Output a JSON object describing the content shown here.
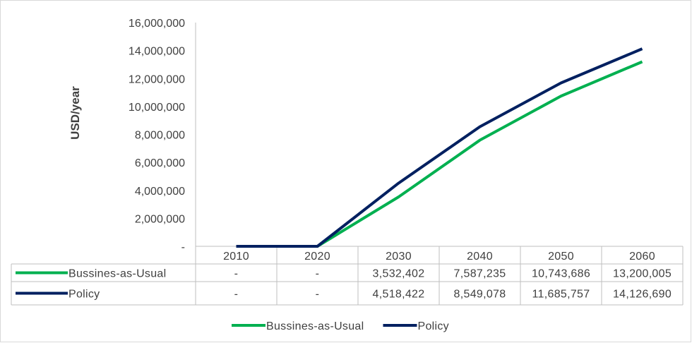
{
  "chart_data": {
    "type": "line",
    "title": "",
    "ylabel": "USD/year",
    "xlabel": "",
    "x": [
      "2010",
      "2020",
      "2030",
      "2040",
      "2050",
      "2060"
    ],
    "ylim": [
      0,
      16000000
    ],
    "yticks": [
      0,
      2000000,
      4000000,
      6000000,
      8000000,
      10000000,
      12000000,
      14000000,
      16000000
    ],
    "ytick_labels": [
      "-",
      "2,000,000",
      "4,000,000",
      "6,000,000",
      "8,000,000",
      "10,000,000",
      "12,000,000",
      "14,000,000",
      "16,000,000"
    ],
    "grid": false,
    "legend_position": "bottom",
    "series": [
      {
        "name": "Bussines-as-Usual",
        "color": "#00b050",
        "values": [
          0,
          0,
          3532402,
          7587235,
          10743686,
          13200005
        ],
        "labels": [
          "-",
          "-",
          "3,532,402",
          "7,587,235",
          "10,743,686",
          "13,200,005"
        ]
      },
      {
        "name": "Policy",
        "color": "#002060",
        "values": [
          0,
          0,
          4518422,
          8549078,
          11685757,
          14126690
        ],
        "labels": [
          "-",
          "-",
          "4,518,422",
          "8,549,078",
          "11,685,757",
          "14,126,690"
        ]
      }
    ]
  }
}
